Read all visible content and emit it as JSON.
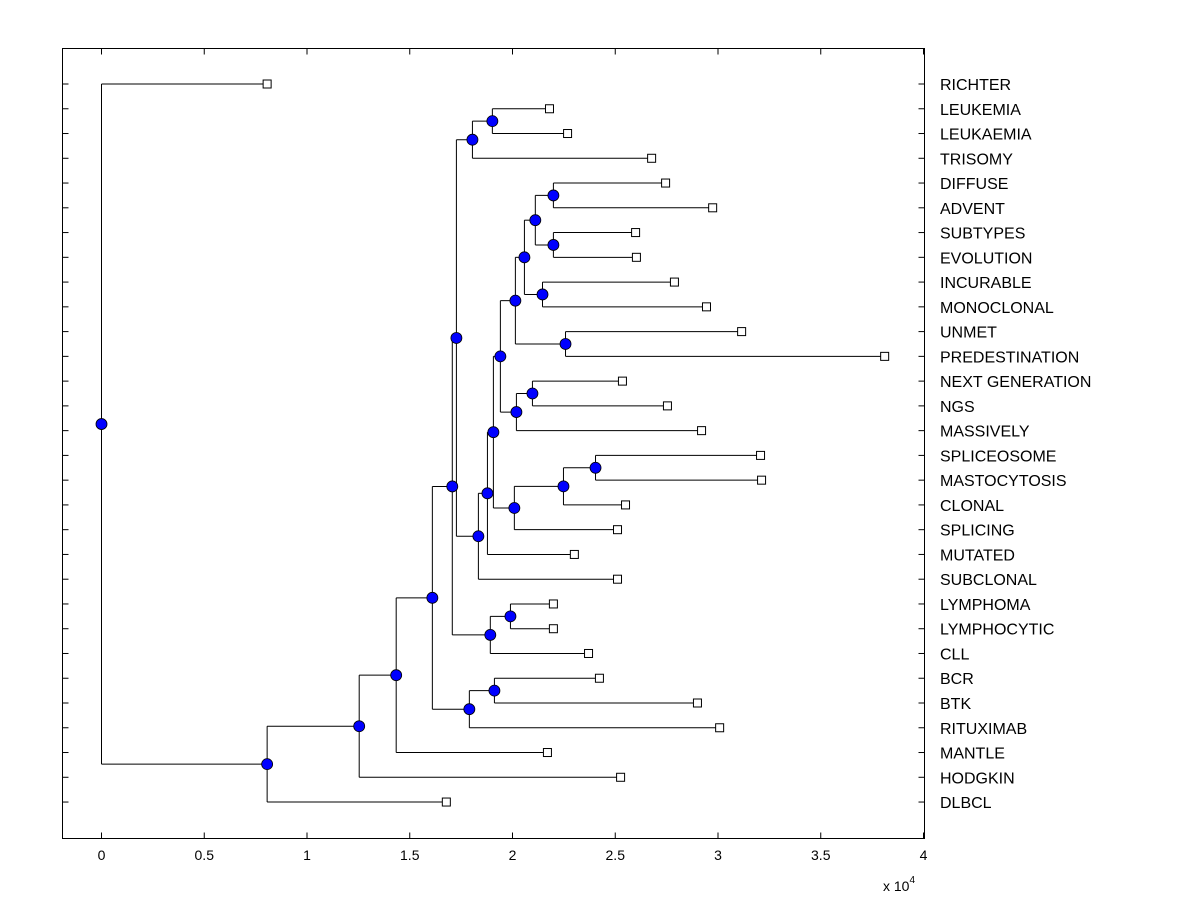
{
  "chart_data": {
    "type": "dendrogram",
    "title": "",
    "xlabel": "",
    "ylabel": "",
    "x_multiplier_label": "x 10",
    "x_multiplier_exponent": "4",
    "xlim": [
      -0.19,
      4.0
    ],
    "xticks": [
      "0",
      "0.5",
      "1",
      "1.5",
      "2",
      "2.5",
      "3",
      "3.5",
      "4"
    ],
    "grid": false,
    "colors": {
      "internal_node": "#0000ff",
      "leaf_node": "#ffffff",
      "edge": "#000000"
    },
    "tree": {
      "x": 0,
      "children": [
        {
          "label": "RICHTER",
          "x": 0.806
        },
        {
          "x": 0.806,
          "children": [
            {
              "x": 1.254,
              "children": [
                {
                  "x": 1.434,
                  "children": [
                    {
                      "x": 1.61,
                      "children": [
                        {
                          "x": 1.707,
                          "children": [
                            {
                              "x": 1.727,
                              "children": [
                                {
                                  "x": 1.805,
                                  "children": [
                                    {
                                      "x": 1.902,
                                      "children": [
                                        {
                                          "label": "LEUKEMIA",
                                          "x": 2.18
                                        },
                                        {
                                          "label": "LEUKAEMIA",
                                          "x": 2.268
                                        }
                                      ]
                                    },
                                    {
                                      "label": "TRISOMY",
                                      "x": 2.677
                                    }
                                  ]
                                },
                                {
                                  "x": 1.834,
                                  "children": [
                                    {
                                      "x": 1.878,
                                      "children": [
                                        {
                                          "x": 1.907,
                                          "children": [
                                            {
                                              "x": 1.941,
                                              "children": [
                                                {
                                                  "x": 2.014,
                                                  "children": [
                                                    {
                                                      "x": 2.058,
                                                      "children": [
                                                        {
                                                          "x": 2.111,
                                                          "children": [
                                                            {
                                                              "x": 2.199,
                                                              "children": [
                                                                {
                                                                  "label": "DIFFUSE",
                                                                  "x": 2.745
                                                                },
                                                                {
                                                                  "label": "ADVENT",
                                                                  "x": 2.974
                                                                }
                                                              ]
                                                            },
                                                            {
                                                              "x": 2.199,
                                                              "children": [
                                                                {
                                                                  "label": "SUBTYPES",
                                                                  "x": 2.599
                                                                },
                                                                {
                                                                  "label": "EVOLUTION",
                                                                  "x": 2.603
                                                                }
                                                              ]
                                                            }
                                                          ]
                                                        },
                                                        {
                                                          "x": 2.146,
                                                          "children": [
                                                            {
                                                              "label": "INCURABLE",
                                                              "x": 2.788
                                                            },
                                                            {
                                                              "label": "MONOCLONAL",
                                                              "x": 2.944
                                                            }
                                                          ]
                                                        }
                                                      ]
                                                    },
                                                    {
                                                      "x": 2.258,
                                                      "children": [
                                                        {
                                                          "label": "UNMET",
                                                          "x": 3.115
                                                        },
                                                        {
                                                          "label": "PREDESTINATION",
                                                          "x": 3.811
                                                        }
                                                      ]
                                                    }
                                                  ]
                                                },
                                                {
                                                  "x": 2.019,
                                                  "children": [
                                                    {
                                                      "x": 2.097,
                                                      "children": [
                                                        {
                                                          "label": "NEXT GENERATION",
                                                          "x": 2.535
                                                        },
                                                        {
                                                          "label": "NGS",
                                                          "x": 2.754
                                                        }
                                                      ]
                                                    },
                                                    {
                                                      "label": "MASSIVELY",
                                                      "x": 2.92
                                                    }
                                                  ]
                                                }
                                              ]
                                            },
                                            {
                                              "x": 2.009,
                                              "children": [
                                                {
                                                  "x": 2.248,
                                                  "children": [
                                                    {
                                                      "x": 2.404,
                                                      "children": [
                                                        {
                                                          "label": "SPLICEOSOME",
                                                          "x": 3.207
                                                        },
                                                        {
                                                          "label": "MASTOCYTOSIS",
                                                          "x": 3.212
                                                        }
                                                      ]
                                                    },
                                                    {
                                                      "label": "CLONAL",
                                                      "x": 2.55
                                                    }
                                                  ]
                                                },
                                                {
                                                  "label": "SPLICING",
                                                  "x": 2.511
                                                }
                                              ]
                                            }
                                          ]
                                        },
                                        {
                                          "label": "MUTATED",
                                          "x": 2.301
                                        }
                                      ]
                                    },
                                    {
                                      "label": "SUBCLONAL",
                                      "x": 2.511
                                    }
                                  ]
                                }
                              ]
                            },
                            {
                              "x": 1.892,
                              "children": [
                                {
                                  "x": 1.99,
                                  "children": [
                                    {
                                      "label": "LYMPHOMA",
                                      "x": 2.199
                                    },
                                    {
                                      "label": "LYMPHOCYTIC",
                                      "x": 2.199
                                    }
                                  ]
                                },
                                {
                                  "label": "CLL",
                                  "x": 2.37
                                }
                              ]
                            }
                          ]
                        },
                        {
                          "x": 1.79,
                          "children": [
                            {
                              "x": 1.912,
                              "children": [
                                {
                                  "label": "BCR",
                                  "x": 2.423
                                },
                                {
                                  "label": "BTK",
                                  "x": 2.9
                                }
                              ]
                            },
                            {
                              "label": "RITUXIMAB",
                              "x": 3.008
                            }
                          ]
                        }
                      ]
                    },
                    {
                      "label": "MANTLE",
                      "x": 2.17
                    }
                  ]
                },
                {
                  "label": "HODGKIN",
                  "x": 2.526
                }
              ]
            },
            {
              "label": "DLBCL",
              "x": 1.678
            }
          ]
        }
      ]
    }
  }
}
